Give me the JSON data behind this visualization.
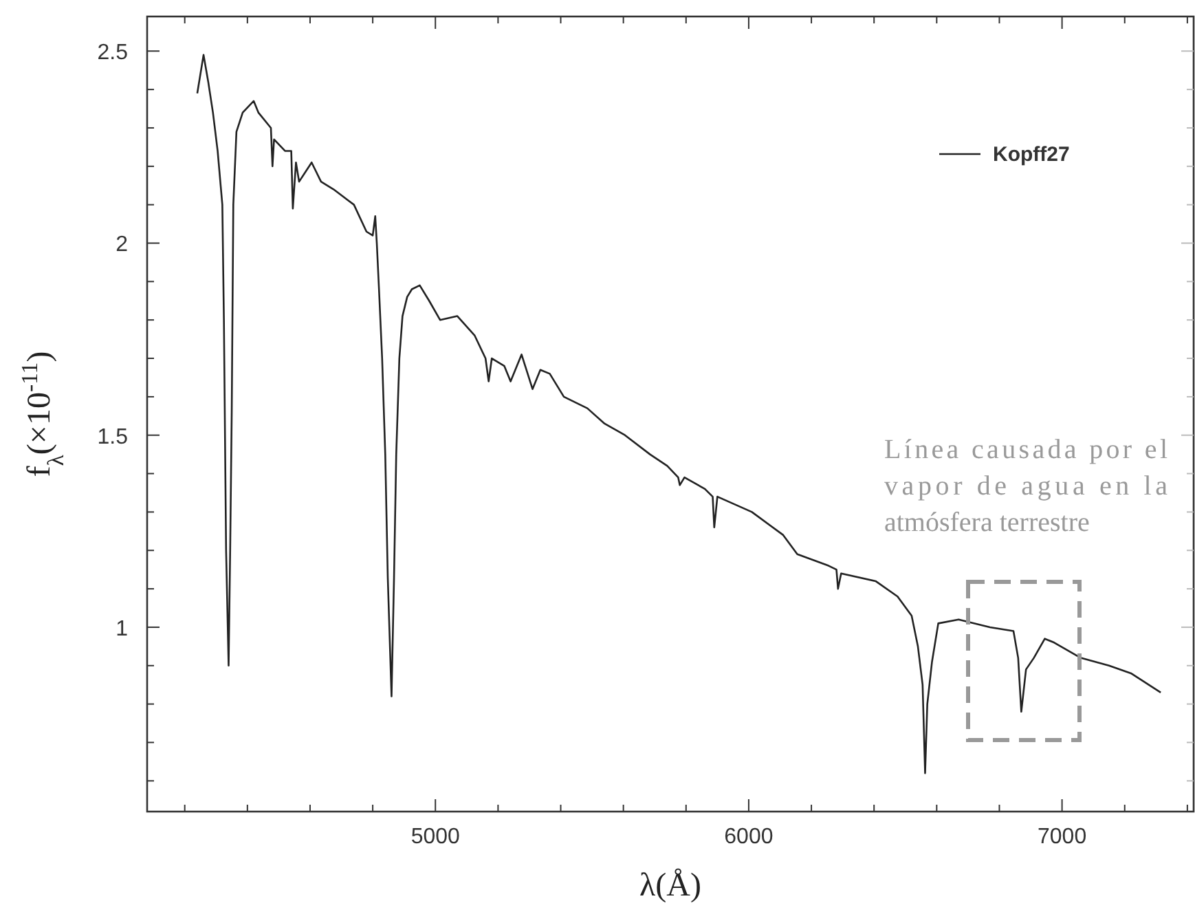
{
  "chart_data": {
    "type": "line",
    "xlabel": "λ(Å)",
    "ylabel": "f$_{λ}$(×10$^{-11}$)",
    "xlim": [
      4080,
      7420
    ],
    "ylim": [
      0.52,
      2.59
    ],
    "xticks": [
      {
        "value": 4200,
        "label": null
      },
      {
        "value": 4400,
        "label": null
      },
      {
        "value": 4600,
        "label": null
      },
      {
        "value": 4800,
        "label": null
      },
      5000,
      {
        "value": 5200,
        "label": null
      },
      {
        "value": 5400,
        "label": null
      },
      {
        "value": 5600,
        "label": null
      },
      {
        "value": 5800,
        "label": null
      },
      6000,
      {
        "value": 6200,
        "label": null
      },
      {
        "value": 6400,
        "label": null
      },
      {
        "value": 6600,
        "label": null
      },
      {
        "value": 6800,
        "label": null
      },
      7000,
      {
        "value": 7200,
        "label": null
      },
      {
        "value": 7400,
        "label": null
      }
    ],
    "yticks": [
      {
        "value": 0.6,
        "label": null
      },
      {
        "value": 0.7,
        "label": null
      },
      {
        "value": 0.8,
        "label": null
      },
      {
        "value": 0.9,
        "label": null
      },
      1,
      {
        "value": 1.1,
        "label": null
      },
      {
        "value": 1.2,
        "label": null
      },
      {
        "value": 1.3,
        "label": null
      },
      {
        "value": 1.4,
        "label": null
      },
      1.5,
      {
        "value": 1.6,
        "label": null
      },
      {
        "value": 1.7,
        "label": null
      },
      {
        "value": 1.8,
        "label": null
      },
      {
        "value": 1.9,
        "label": null
      },
      2,
      {
        "value": 2.1,
        "label": null
      },
      {
        "value": 2.2,
        "label": null
      },
      {
        "value": 2.3,
        "label": null
      },
      {
        "value": 2.4,
        "label": null
      },
      2.5
    ],
    "grid": false,
    "legend": "top right",
    "marker": "none",
    "line_style": "solid",
    "annotations": [
      "Línea causada por el vapor de agua en la atmósfera terrestre"
    ],
    "series": [
      {
        "name": "Kopff27",
        "color": "#222222",
        "x": [
          4240,
          4260,
          4275,
          4290,
          4305,
          4320,
          4325,
          4332,
          4340,
          4345,
          4350,
          4355,
          4365,
          4385,
          4420,
          4435,
          4475,
          4480,
          4485,
          4520,
          4540,
          4545,
          4555,
          4565,
          4605,
          4635,
          4675,
          4740,
          4780,
          4800,
          4808,
          4813,
          4820,
          4830,
          4840,
          4848,
          4860,
          4868,
          4875,
          4885,
          4895,
          4910,
          4925,
          4950,
          4980,
          5015,
          5070,
          5125,
          5160,
          5170,
          5180,
          5220,
          5240,
          5275,
          5310,
          5335,
          5365,
          5410,
          5485,
          5540,
          5605,
          5685,
          5740,
          5775,
          5780,
          5795,
          5860,
          5885,
          5890,
          5900,
          6010,
          6110,
          6155,
          6255,
          6280,
          6285,
          6295,
          6405,
          6475,
          6520,
          6540,
          6555,
          6563,
          6570,
          6585,
          6605,
          6670,
          6770,
          6845,
          6860,
          6870,
          6885,
          6910,
          6945,
          6975,
          7060,
          7150,
          7220,
          7315
        ],
        "values": [
          2.39,
          2.49,
          2.42,
          2.34,
          2.24,
          2.1,
          1.8,
          1.2,
          0.9,
          1.2,
          1.56,
          2.1,
          2.29,
          2.34,
          2.37,
          2.34,
          2.3,
          2.2,
          2.27,
          2.24,
          2.24,
          2.09,
          2.21,
          2.16,
          2.21,
          2.16,
          2.14,
          2.1,
          2.03,
          2.02,
          2.07,
          2.0,
          1.88,
          1.7,
          1.45,
          1.13,
          0.82,
          1.13,
          1.45,
          1.7,
          1.81,
          1.86,
          1.88,
          1.89,
          1.85,
          1.8,
          1.81,
          1.76,
          1.7,
          1.64,
          1.7,
          1.68,
          1.64,
          1.71,
          1.62,
          1.67,
          1.66,
          1.6,
          1.57,
          1.53,
          1.5,
          1.45,
          1.42,
          1.39,
          1.37,
          1.39,
          1.36,
          1.34,
          1.26,
          1.34,
          1.3,
          1.24,
          1.19,
          1.16,
          1.15,
          1.1,
          1.14,
          1.12,
          1.08,
          1.03,
          0.95,
          0.85,
          0.62,
          0.8,
          0.91,
          1.01,
          1.02,
          1.0,
          0.99,
          0.92,
          0.78,
          0.89,
          0.92,
          0.97,
          0.96,
          0.92,
          0.9,
          0.88,
          0.83
        ]
      }
    ]
  }
}
